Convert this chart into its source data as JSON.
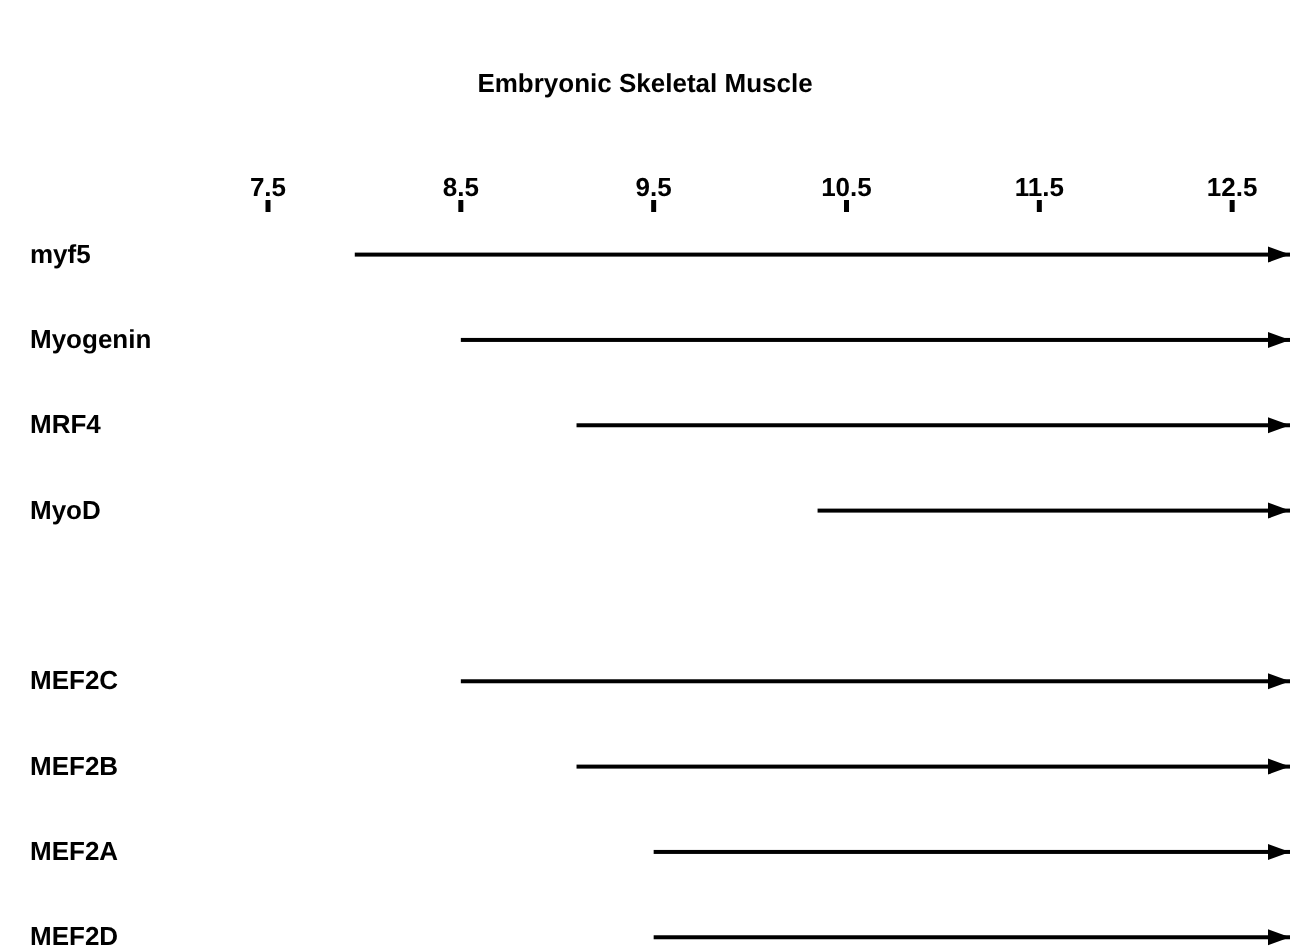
{
  "chart_data": {
    "type": "bar",
    "orientation": "horizontal",
    "title": "Embryonic Skeletal Muscle",
    "categories": [
      "myf5",
      "Myogenin",
      "MRF4",
      "MyoD",
      null,
      "MEF2C",
      "MEF2B",
      "MEF2A",
      "MEF2D"
    ],
    "base": [
      7.95,
      8.5,
      9.1,
      10.35,
      null,
      8.5,
      9.1,
      9.5,
      9.5
    ],
    "values": [
      4.85,
      4.3,
      3.7,
      2.45,
      null,
      4.3,
      3.7,
      3.3,
      3.3
    ],
    "color": "#000000",
    "xlim": [
      7.5,
      12.8
    ],
    "xticks": [
      7.5,
      8.5,
      9.5,
      10.5,
      11.5,
      12.5
    ]
  }
}
